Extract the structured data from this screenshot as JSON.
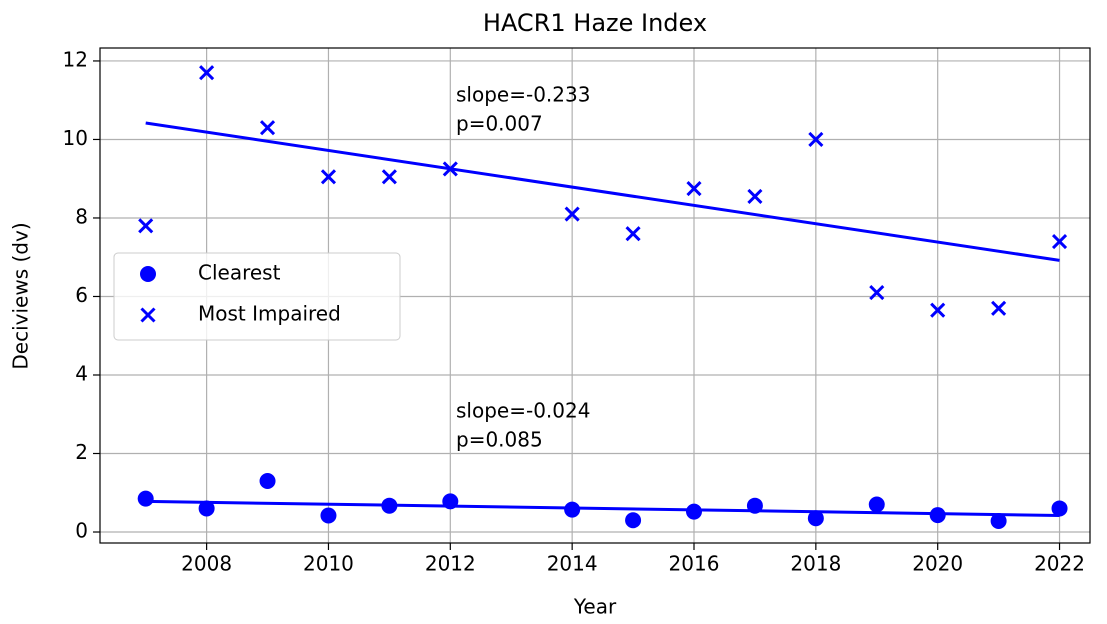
{
  "chart_data": {
    "type": "scatter",
    "title": "HACR1 Haze Index",
    "x_label": "Year",
    "y_label": "Deciviews (dv)",
    "x": [
      2007,
      2008,
      2009,
      2010,
      2011,
      2012,
      2014,
      2015,
      2016,
      2017,
      2018,
      2019,
      2020,
      2021,
      2022
    ],
    "series": [
      {
        "name": "Clearest",
        "color": "#0000ff",
        "marker": "circle",
        "values": [
          0.85,
          0.6,
          1.3,
          0.42,
          0.67,
          0.78,
          0.57,
          0.3,
          0.52,
          0.67,
          0.35,
          0.7,
          0.43,
          0.28,
          0.6
        ],
        "trend": {
          "x": [
            2007,
            2022
          ],
          "values": [
            0.78,
            0.42
          ]
        }
      },
      {
        "name": "Most Impaired",
        "color": "#0000ff",
        "marker": "x",
        "values": [
          7.8,
          11.7,
          10.3,
          9.05,
          9.05,
          9.25,
          8.1,
          7.6,
          8.75,
          8.55,
          10.0,
          6.1,
          5.65,
          5.7,
          7.4
        ],
        "trend": {
          "x": [
            2007,
            2022
          ],
          "values": [
            10.42,
            6.92
          ]
        }
      }
    ],
    "annotations": [
      [
        "slope=-0.233",
        "p=0.007"
      ],
      [
        "slope=-0.024",
        "p=0.085"
      ]
    ],
    "xlim": [
      2006.25,
      2022.5
    ],
    "ylim": [
      -0.28,
      12.33
    ],
    "xticks": [
      2008,
      2010,
      2012,
      2014,
      2016,
      2018,
      2020,
      2022
    ],
    "yticks": [
      0,
      2,
      4,
      6,
      8,
      10,
      12
    ],
    "grid": true,
    "legend": "center left"
  }
}
